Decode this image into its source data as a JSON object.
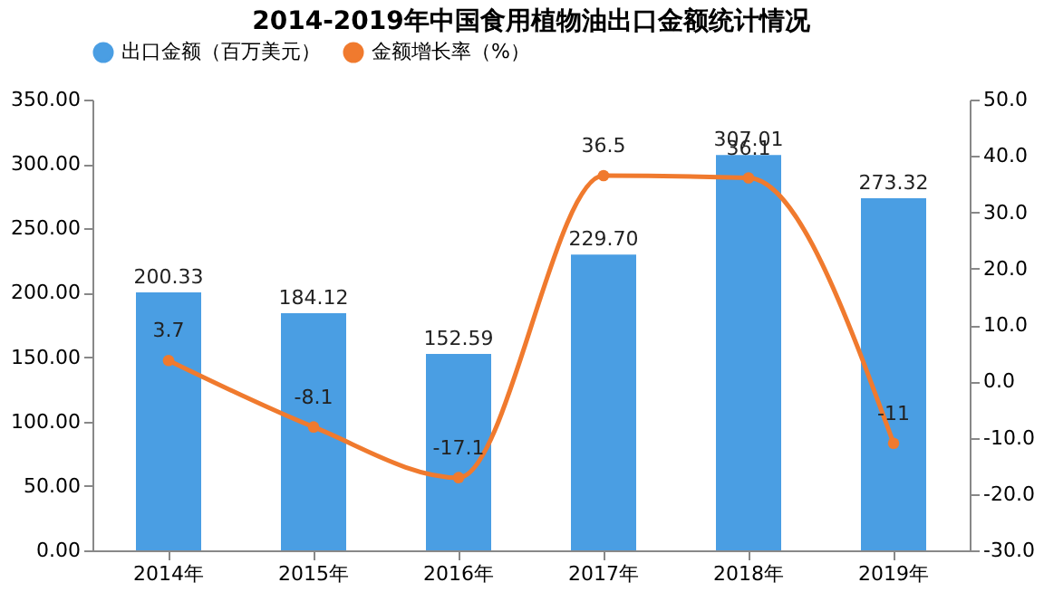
{
  "chart_data": {
    "type": "bar",
    "title": "2014-2019年中国食用植物油出口金额统计情况",
    "categories": [
      "2014年",
      "2015年",
      "2016年",
      "2017年",
      "2018年",
      "2019年"
    ],
    "series": [
      {
        "name": "出口金额（百万美元）",
        "color": "#4a9ee3",
        "values": [
          200.33,
          184.12,
          152.59,
          229.7,
          307.01,
          273.32
        ],
        "value_labels": [
          "200.33",
          "184.12",
          "152.59",
          "229.70",
          "307.01",
          "273.32"
        ]
      },
      {
        "name": "金额增长率（%）",
        "type": "line",
        "axis": "y2",
        "color": "#f07a2e",
        "values": [
          3.7,
          -8.1,
          -17.1,
          36.5,
          36.1,
          -11
        ],
        "value_labels": [
          "3.7",
          "-8.1",
          "-17.1",
          "36.5",
          "36.1",
          "-11"
        ]
      }
    ],
    "ylim": [
      0,
      350
    ],
    "yticks": [
      {
        "value": 0,
        "label": "0.00"
      },
      {
        "value": 50,
        "label": "50.00"
      },
      {
        "value": 100,
        "label": "100.00"
      },
      {
        "value": 150,
        "label": "150.00"
      },
      {
        "value": 200,
        "label": "200.00"
      },
      {
        "value": 250,
        "label": "250.00"
      },
      {
        "value": 300,
        "label": "300.00"
      },
      {
        "value": 350,
        "label": "350.00"
      }
    ],
    "y2lim": [
      -30,
      50
    ],
    "y2ticks": [
      {
        "value": -30,
        "label": "-30.0"
      },
      {
        "value": -20,
        "label": "-20.0"
      },
      {
        "value": -10,
        "label": "-10.0"
      },
      {
        "value": 0,
        "label": "0.0"
      },
      {
        "value": 10,
        "label": "10.0"
      },
      {
        "value": 20,
        "label": "20.0"
      },
      {
        "value": 30,
        "label": "30.0"
      },
      {
        "value": 40,
        "label": "40.0"
      },
      {
        "value": 50,
        "label": "50.0"
      }
    ],
    "marker": "circle",
    "grid": false,
    "legend": "top"
  }
}
